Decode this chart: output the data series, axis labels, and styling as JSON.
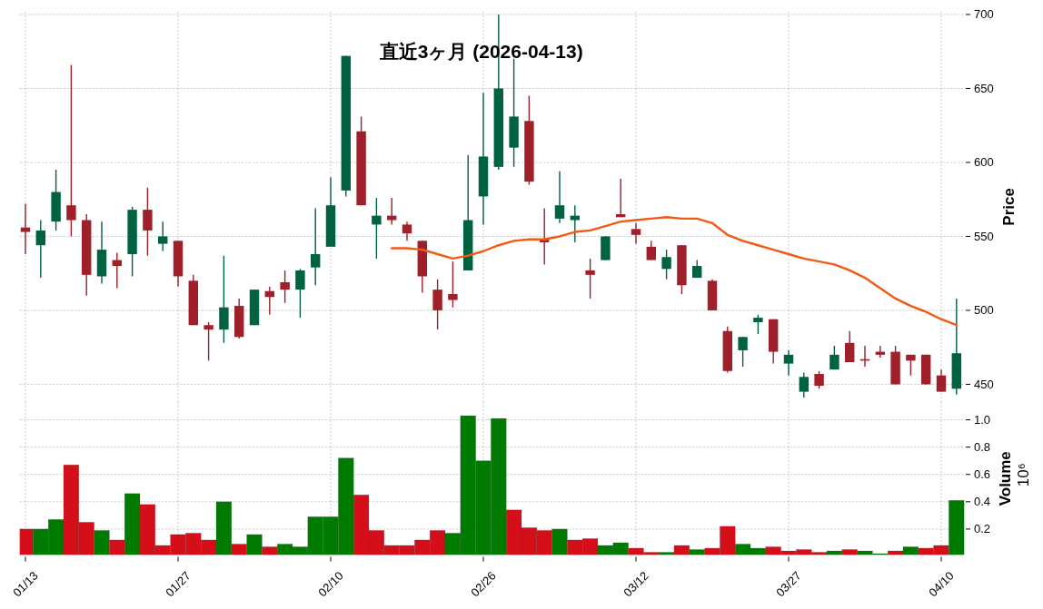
{
  "chart_data": [
    {
      "type": "candlestick",
      "title": "直近3ヶ月 (2026-04-13)",
      "categories": [
        null,
        null,
        null,
        null,
        null,
        null,
        null,
        null,
        null,
        null,
        null,
        null,
        null,
        null,
        null,
        null,
        null,
        null,
        null,
        null,
        null,
        null,
        null,
        null,
        null,
        null,
        null,
        null,
        null,
        null,
        null,
        null,
        null,
        null,
        null,
        null,
        null,
        null,
        null,
        null,
        null,
        null,
        null,
        null,
        null,
        null,
        null,
        null,
        null,
        null,
        null,
        null,
        null,
        null,
        null,
        null,
        null,
        null,
        null,
        null,
        null,
        null
      ],
      "ohlc": [
        [
          556,
          572,
          538,
          553
        ],
        [
          544,
          561,
          522,
          554
        ],
        [
          560,
          595,
          554,
          580
        ],
        [
          571,
          666,
          550,
          561
        ],
        [
          561,
          565,
          510,
          524
        ],
        [
          523,
          560,
          518,
          541
        ],
        [
          534,
          539,
          515,
          530
        ],
        [
          538,
          570,
          523,
          568
        ],
        [
          568,
          583,
          537,
          554
        ],
        [
          545,
          560,
          540,
          550
        ],
        [
          547,
          547,
          516,
          523
        ],
        [
          520,
          524,
          490,
          490
        ],
        [
          490,
          492,
          466,
          487
        ],
        [
          487,
          537,
          478,
          502
        ],
        [
          503,
          508,
          481,
          482
        ],
        [
          490,
          514,
          490,
          514
        ],
        [
          513,
          516,
          497,
          509
        ],
        [
          519,
          527,
          505,
          514
        ],
        [
          514,
          528,
          495,
          527
        ],
        [
          529,
          569,
          517,
          538
        ],
        [
          543,
          590,
          543,
          571
        ],
        [
          581,
          672,
          577,
          672
        ],
        [
          621,
          631,
          571,
          571
        ],
        [
          558,
          576,
          535,
          564
        ],
        [
          564,
          576,
          558,
          561
        ],
        [
          558,
          560,
          547,
          552
        ],
        [
          547,
          547,
          512,
          523
        ],
        [
          514,
          521,
          487,
          500
        ],
        [
          511,
          533,
          502,
          507
        ],
        [
          527,
          605,
          527,
          561
        ],
        [
          577,
          647,
          558,
          604
        ],
        [
          597,
          700,
          595,
          650
        ],
        [
          610,
          670,
          597,
          631
        ],
        [
          628,
          645,
          585,
          587
        ],
        [
          548,
          569,
          531,
          546
        ],
        [
          562,
          594,
          559,
          571
        ],
        [
          561,
          571,
          546,
          564
        ],
        [
          527,
          535,
          508,
          524
        ],
        [
          534,
          550,
          534,
          550
        ],
        [
          565,
          589,
          563,
          563
        ],
        [
          555,
          559,
          545,
          551
        ],
        [
          543,
          547,
          534,
          534
        ],
        [
          528,
          541,
          521,
          536
        ],
        [
          544,
          544,
          511,
          517
        ],
        [
          522,
          534,
          522,
          530
        ],
        [
          520,
          521,
          500,
          500
        ],
        [
          486,
          489,
          458,
          459
        ],
        [
          473,
          482,
          462,
          482
        ],
        [
          492,
          497,
          484,
          495
        ],
        [
          494,
          494,
          464,
          472
        ],
        [
          464,
          473,
          456,
          470
        ],
        [
          445,
          458,
          441,
          455
        ],
        [
          457,
          459,
          447,
          449
        ],
        [
          460,
          476,
          460,
          470
        ],
        [
          478,
          486,
          465,
          465
        ],
        [
          467,
          476,
          462,
          466
        ],
        [
          472,
          476,
          468,
          470
        ],
        [
          472,
          476,
          450,
          450
        ],
        [
          470,
          470,
          456,
          466
        ],
        [
          470,
          470,
          450,
          450
        ],
        [
          456,
          460,
          445,
          445
        ],
        [
          447,
          508,
          443,
          471
        ]
      ],
      "colors": [
        "#a0202a",
        "#006340",
        "#006340",
        "#a0202a",
        "#a0202a",
        "#006340",
        "#a0202a",
        "#006340",
        "#a0202a",
        "#006340",
        "#a0202a",
        "#a0202a",
        "#a0202a",
        "#006340",
        "#a0202a",
        "#006340",
        "#a0202a",
        "#a0202a",
        "#006340",
        "#006340",
        "#006340",
        "#006340",
        "#a0202a",
        "#006340",
        "#a0202a",
        "#a0202a",
        "#a0202a",
        "#a0202a",
        "#a0202a",
        "#006340",
        "#006340",
        "#006340",
        "#006340",
        "#a0202a",
        "#a0202a",
        "#006340",
        "#006340",
        "#a0202a",
        "#006340",
        "#a0202a",
        "#a0202a",
        "#a0202a",
        "#006340",
        "#a0202a",
        "#006340",
        "#a0202a",
        "#a0202a",
        "#006340",
        "#006340",
        "#a0202a",
        "#006340",
        "#006340",
        "#a0202a",
        "#006340",
        "#a0202a",
        "#a0202a",
        "#a0202a",
        "#a0202a",
        "#a0202a",
        "#a0202a",
        "#a0202a",
        "#006340"
      ],
      "series": [
        {
          "type": "line",
          "color": "#f25a14",
          "values": [
            null,
            null,
            null,
            null,
            null,
            null,
            null,
            null,
            null,
            null,
            null,
            null,
            null,
            null,
            null,
            null,
            null,
            null,
            null,
            null,
            null,
            null,
            null,
            null,
            542,
            542,
            541,
            538,
            535,
            537,
            540,
            544,
            547,
            548,
            548,
            550,
            553,
            554,
            557,
            560,
            561,
            562,
            563,
            562,
            562,
            559,
            551,
            547,
            544,
            541,
            538,
            535,
            533,
            531,
            527,
            522,
            515,
            508,
            503,
            499,
            494,
            490
          ]
        }
      ],
      "ylabel": "Price",
      "ylim": [
        438,
        702
      ],
      "yticks": [
        450,
        500,
        550,
        600,
        650,
        700
      ],
      "grid": true,
      "tick_labels": "y"
    },
    {
      "type": "bar",
      "categories": [
        "01/13",
        null,
        null,
        null,
        null,
        null,
        null,
        null,
        null,
        null,
        "01/27",
        null,
        null,
        null,
        null,
        null,
        null,
        null,
        null,
        null,
        "02/10",
        null,
        null,
        null,
        null,
        null,
        null,
        null,
        null,
        null,
        "02/26",
        null,
        null,
        null,
        null,
        null,
        null,
        null,
        null,
        null,
        "03/12",
        null,
        null,
        null,
        null,
        null,
        null,
        null,
        null,
        null,
        "03/27",
        null,
        null,
        null,
        null,
        null,
        null,
        null,
        null,
        null,
        "04/10",
        null
      ],
      "values": [
        0.2,
        0.2,
        0.27,
        0.67,
        0.25,
        0.19,
        0.12,
        0.46,
        0.38,
        0.08,
        0.16,
        0.17,
        0.12,
        0.4,
        0.09,
        0.16,
        0.07,
        0.09,
        0.07,
        0.29,
        0.29,
        0.72,
        0.45,
        0.19,
        0.08,
        0.08,
        0.12,
        0.19,
        0.17,
        1.03,
        0.7,
        1.01,
        0.34,
        0.21,
        0.19,
        0.2,
        0.12,
        0.13,
        0.08,
        0.1,
        0.06,
        0.03,
        0.03,
        0.08,
        0.05,
        0.06,
        0.22,
        0.09,
        0.06,
        0.07,
        0.04,
        0.05,
        0.03,
        0.04,
        0.05,
        0.04,
        0.02,
        0.04,
        0.07,
        0.06,
        0.08,
        0.41
      ],
      "colors": [
        "#d40f1a",
        "#007a00",
        "#007a00",
        "#d40f1a",
        "#d40f1a",
        "#007a00",
        "#d40f1a",
        "#007a00",
        "#d40f1a",
        "#d40f1a",
        "#d40f1a",
        "#d40f1a",
        "#d40f1a",
        "#007a00",
        "#d40f1a",
        "#007a00",
        "#d40f1a",
        "#007a00",
        "#007a00",
        "#007a00",
        "#007a00",
        "#007a00",
        "#d40f1a",
        "#d40f1a",
        "#d40f1a",
        "#d40f1a",
        "#d40f1a",
        "#d40f1a",
        "#007a00",
        "#007a00",
        "#007a00",
        "#007a00",
        "#d40f1a",
        "#d40f1a",
        "#d40f1a",
        "#007a00",
        "#d40f1a",
        "#d40f1a",
        "#007a00",
        "#007a00",
        "#d40f1a",
        "#d40f1a",
        "#007a00",
        "#d40f1a",
        "#007a00",
        "#d40f1a",
        "#d40f1a",
        "#007a00",
        "#007a00",
        "#d40f1a",
        "#d40f1a",
        "#d40f1a",
        "#d40f1a",
        "#007a00",
        "#d40f1a",
        "#007a00",
        "#007a00",
        "#d40f1a",
        "#007a00",
        "#d40f1a",
        "#d40f1a",
        "#007a00"
      ],
      "ylabel": "Volume",
      "annotations": [
        "10⁶"
      ],
      "ylim": [
        0.01,
        1.13
      ],
      "yticks": [
        0.2,
        0.4,
        0.6,
        0.8,
        {
          "value": 1,
          "label": "1.0"
        }
      ],
      "grid": true
    }
  ]
}
